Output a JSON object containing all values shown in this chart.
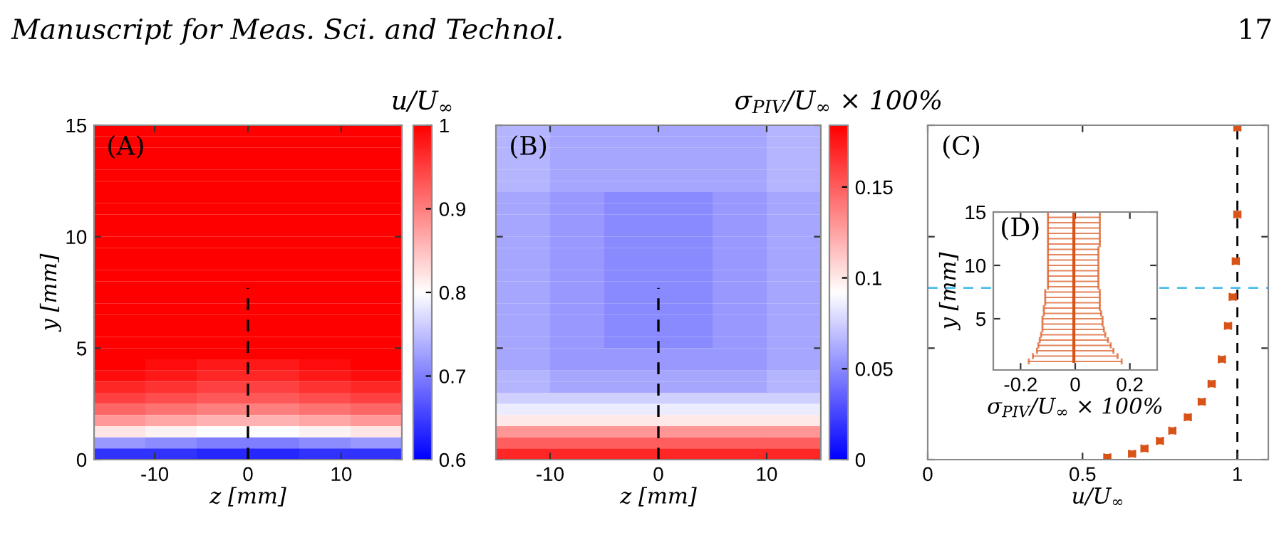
{
  "chart_data": [
    {
      "type": "heatmap",
      "clabel": "u/U$_{∞}$",
      "xlabel": "z [mm]",
      "ylabel": "y [mm]",
      "annotations": [
        "(A)",
        "Manuscript for Meas. Sci. and Technol.",
        "17"
      ],
      "x": [
        -13.75,
        -8.25,
        -2.75,
        2.75,
        8.25,
        13.75
      ],
      "cells": [
        [
          1,
          1,
          1,
          1,
          1,
          1
        ],
        [
          1,
          1,
          1,
          1,
          1,
          1
        ],
        [
          1,
          1,
          1,
          1,
          1,
          1
        ],
        [
          1,
          1,
          1,
          1,
          1,
          1
        ],
        [
          1,
          1,
          1,
          1,
          1,
          1
        ],
        [
          1,
          1,
          1,
          1,
          1,
          1
        ],
        [
          1,
          1,
          1,
          1,
          1,
          1
        ],
        [
          1,
          1,
          1,
          1,
          1,
          1
        ],
        [
          1,
          1,
          1,
          1,
          1,
          1
        ],
        [
          1,
          1,
          1,
          1,
          1,
          1
        ],
        [
          1,
          1,
          1,
          1,
          1,
          1
        ],
        [
          1,
          1,
          1,
          1,
          1,
          1
        ],
        [
          1,
          1,
          1,
          1,
          1,
          1
        ],
        [
          1,
          1,
          1,
          1,
          1,
          1
        ],
        [
          1,
          1,
          1,
          1,
          1,
          1
        ],
        [
          1,
          1,
          1,
          1,
          1,
          1
        ],
        [
          1,
          1,
          1,
          1,
          1,
          1
        ],
        [
          1,
          1,
          1,
          1,
          1,
          1
        ],
        [
          1,
          1,
          1,
          1,
          1,
          1
        ],
        [
          1,
          1,
          1,
          1,
          1,
          1
        ],
        [
          1,
          1,
          1,
          1,
          1,
          1
        ],
        [
          1,
          0.99,
          0.98,
          0.98,
          0.99,
          1
        ],
        [
          0.99,
          0.98,
          0.97,
          0.97,
          0.98,
          0.99
        ],
        [
          0.97,
          0.96,
          0.95,
          0.95,
          0.96,
          0.97
        ],
        [
          0.95,
          0.94,
          0.93,
          0.93,
          0.94,
          0.95
        ],
        [
          0.92,
          0.91,
          0.9,
          0.9,
          0.91,
          0.92
        ],
        [
          0.88,
          0.87,
          0.86,
          0.86,
          0.87,
          0.88
        ],
        [
          0.82,
          0.81,
          0.8,
          0.8,
          0.81,
          0.82
        ],
        [
          0.72,
          0.71,
          0.7,
          0.7,
          0.71,
          0.72
        ],
        [
          0.64,
          0.64,
          0.63,
          0.63,
          0.64,
          0.64
        ]
      ],
      "clim": [
        0.6,
        1
      ],
      "cticks": [
        0.6,
        0.7,
        0.8,
        0.9,
        1
      ],
      "xlim": [
        -16.5,
        16.5
      ],
      "xticks": [
        -10,
        0,
        10
      ],
      "ylim": [
        0,
        15
      ],
      "yticks": [
        0,
        5,
        10,
        15
      ],
      "series": [
        {
          "type": "line",
          "x": [
            0,
            0
          ],
          "values": [
            0,
            7.7
          ],
          "color": "#000000",
          "line_style": "dashed"
        }
      ]
    },
    {
      "type": "heatmap",
      "clabel": "σ$_{PIV}$/U$_{∞}$ × 100%",
      "xlabel": "z [mm]",
      "annotations": [
        "(B)"
      ],
      "x": [
        -12.5,
        -7.5,
        -2.5,
        2.5,
        7.5,
        12.5
      ],
      "cells": [
        [
          0.065,
          0.06,
          0.06,
          0.06,
          0.06,
          0.065
        ],
        [
          0.065,
          0.06,
          0.06,
          0.06,
          0.06,
          0.065
        ],
        [
          0.065,
          0.06,
          0.06,
          0.06,
          0.06,
          0.065
        ],
        [
          0.065,
          0.06,
          0.06,
          0.06,
          0.06,
          0.065
        ],
        [
          0.065,
          0.06,
          0.06,
          0.06,
          0.06,
          0.065
        ],
        [
          0.065,
          0.06,
          0.06,
          0.06,
          0.06,
          0.065
        ],
        [
          0.06,
          0.055,
          0.05,
          0.05,
          0.055,
          0.06
        ],
        [
          0.06,
          0.055,
          0.05,
          0.05,
          0.055,
          0.06
        ],
        [
          0.06,
          0.055,
          0.05,
          0.05,
          0.055,
          0.06
        ],
        [
          0.06,
          0.055,
          0.05,
          0.05,
          0.055,
          0.06
        ],
        [
          0.06,
          0.055,
          0.05,
          0.05,
          0.055,
          0.06
        ],
        [
          0.06,
          0.055,
          0.05,
          0.05,
          0.055,
          0.06
        ],
        [
          0.06,
          0.055,
          0.05,
          0.05,
          0.055,
          0.06
        ],
        [
          0.06,
          0.055,
          0.05,
          0.05,
          0.055,
          0.06
        ],
        [
          0.06,
          0.055,
          0.05,
          0.05,
          0.055,
          0.06
        ],
        [
          0.06,
          0.055,
          0.05,
          0.05,
          0.055,
          0.06
        ],
        [
          0.06,
          0.055,
          0.05,
          0.05,
          0.055,
          0.06
        ],
        [
          0.06,
          0.055,
          0.05,
          0.05,
          0.055,
          0.06
        ],
        [
          0.06,
          0.055,
          0.05,
          0.05,
          0.055,
          0.06
        ],
        [
          0.06,
          0.055,
          0.05,
          0.05,
          0.055,
          0.06
        ],
        [
          0.06,
          0.055,
          0.055,
          0.055,
          0.055,
          0.06
        ],
        [
          0.06,
          0.055,
          0.055,
          0.055,
          0.055,
          0.06
        ],
        [
          0.065,
          0.06,
          0.06,
          0.06,
          0.06,
          0.065
        ],
        [
          0.065,
          0.06,
          0.06,
          0.06,
          0.06,
          0.065
        ],
        [
          0.075,
          0.075,
          0.075,
          0.075,
          0.075,
          0.075
        ],
        [
          0.085,
          0.085,
          0.085,
          0.085,
          0.085,
          0.085
        ],
        [
          0.1,
          0.1,
          0.1,
          0.1,
          0.1,
          0.1
        ],
        [
          0.13,
          0.13,
          0.13,
          0.13,
          0.13,
          0.13
        ],
        [
          0.15,
          0.15,
          0.15,
          0.15,
          0.15,
          0.15
        ],
        [
          0.17,
          0.17,
          0.17,
          0.17,
          0.17,
          0.17
        ]
      ],
      "clim": [
        0,
        0.184
      ],
      "cticks": [
        0,
        0.05,
        0.1,
        0.15
      ],
      "xlim": [
        -15,
        15
      ],
      "xticks": [
        -10,
        0,
        10
      ],
      "ylim": [
        0,
        15
      ],
      "yticks": [
        0,
        5,
        10,
        15
      ],
      "tick_labels": "x",
      "series": [
        {
          "type": "line",
          "x": [
            0,
            0
          ],
          "values": [
            0,
            7.7
          ],
          "color": "#000000",
          "line_style": "dashed"
        }
      ]
    },
    {
      "type": "scatter",
      "xlabel": "u/U$_{∞}$",
      "annotations": [
        "(C)"
      ],
      "marker": "square",
      "series": [
        {
          "color": "#d95319",
          "x": [
            0.58,
            0.66,
            0.7,
            0.75,
            0.79,
            0.84,
            0.885,
            0.917,
            0.95,
            0.97,
            0.985,
            0.995,
            1.0,
            1.0
          ],
          "values": [
            0.1,
            0.26,
            0.5,
            0.84,
            1.3,
            1.9,
            2.6,
            3.4,
            4.5,
            6,
            7.3,
            8.9,
            11,
            14.9
          ],
          "xerrors": [
            0.01,
            0.01,
            0.01,
            0.01,
            0.01,
            0.01,
            0.01,
            0.01,
            0.01,
            0.01,
            0.01,
            0.01,
            0.01,
            0.01
          ]
        }
      ],
      "ref_lines": [
        {
          "axis": "x",
          "value": 1,
          "color": "#000000",
          "line_style": "dashed"
        },
        {
          "axis": "y",
          "value": 7.7,
          "color": "#4dbeee",
          "line_style": "dashed"
        }
      ],
      "xlim": [
        0,
        1.1
      ],
      "xticks": [
        0,
        0.5,
        1
      ],
      "ylim": [
        0,
        15
      ],
      "yticks": [
        0,
        5,
        10,
        15
      ],
      "tick_labels": "x"
    },
    {
      "type": "line",
      "xlabel": "σ$_{PIV}$/U$_{∞}$ × 100%",
      "ylabel": "y [mm]",
      "annotations": [
        "(D)"
      ],
      "series": [
        {
          "color": "#d95319",
          "x": [
            -0.005,
            -0.005,
            -0.005,
            -0.005,
            -0.005,
            -0.005,
            -0.005,
            -0.005,
            -0.005,
            -0.005,
            -0.005,
            -0.005,
            -0.005,
            -0.005,
            -0.005,
            -0.005,
            -0.005,
            -0.005,
            -0.005,
            -0.005,
            -0.005,
            -0.005,
            -0.005,
            -0.005,
            -0.005,
            -0.005,
            -0.005,
            -0.005,
            -0.005
          ],
          "values": [
            1,
            1.5,
            2,
            2.5,
            3,
            3.5,
            4,
            4.5,
            5,
            5.5,
            6,
            6.5,
            7,
            7.5,
            8,
            8.5,
            9,
            9.5,
            10,
            10.5,
            11,
            11.5,
            12,
            12.5,
            13,
            13.5,
            14,
            14.5,
            15
          ],
          "xerrors": [
            [
              -0.17,
              0.17
            ],
            [
              -0.155,
              0.155
            ],
            [
              -0.14,
              0.14
            ],
            [
              -0.135,
              0.13
            ],
            [
              -0.13,
              0.12
            ],
            [
              -0.125,
              0.11
            ],
            [
              -0.12,
              0.105
            ],
            [
              -0.12,
              0.1
            ],
            [
              -0.12,
              0.1
            ],
            [
              -0.115,
              0.095
            ],
            [
              -0.115,
              0.09
            ],
            [
              -0.11,
              0.09
            ],
            [
              -0.11,
              0.09
            ],
            [
              -0.11,
              0.09
            ],
            [
              -0.1,
              0.085
            ],
            [
              -0.1,
              0.085
            ],
            [
              -0.1,
              0.085
            ],
            [
              -0.1,
              0.085
            ],
            [
              -0.1,
              0.085
            ],
            [
              -0.1,
              0.085
            ],
            [
              -0.1,
              0.085
            ],
            [
              -0.1,
              0.085
            ],
            [
              -0.1,
              0.09
            ],
            [
              -0.1,
              0.09
            ],
            [
              -0.1,
              0.09
            ],
            [
              -0.1,
              0.09
            ],
            [
              -0.1,
              0.09
            ],
            [
              -0.1,
              0.09
            ],
            [
              -0.1,
              0.09
            ]
          ]
        }
      ],
      "xlim": [
        -0.3,
        0.3
      ],
      "xticks": [
        -0.2,
        0,
        0.2
      ],
      "ylim": [
        0.2,
        15
      ],
      "yticks": [
        5,
        10,
        15
      ]
    }
  ]
}
